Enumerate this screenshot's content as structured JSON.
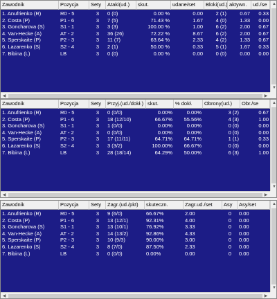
{
  "table1": {
    "headers": [
      "Zawodnik",
      "Pozycja",
      "Sety",
      "Ataki(ud.)",
      "skut.",
      "udane/set",
      "Bloki(ud.)",
      "aktywn.",
      "ud./se"
    ],
    "rows": [
      [
        "1. Anufrienko (R)",
        "R0 - 5",
        "3",
        "0 (0)",
        "0.00 %",
        "0.00",
        "2 (1)",
        "0.67",
        "0.33"
      ],
      [
        "2. Costa (P)",
        "P1 - 6",
        "3",
        "7 (5)",
        "71.43 %",
        "1.67",
        "4 (0)",
        "1.33",
        "0.00"
      ],
      [
        "3. Goncharova (S)",
        "S1 - 1",
        "3",
        "3 (3)",
        "100.00 %",
        "1.00",
        "6 (2)",
        "2.00",
        "0.67"
      ],
      [
        "4. Van-Hecke (A)",
        "AT - 2",
        "3",
        "36 (26)",
        "72.22 %",
        "8.67",
        "6 (2)",
        "2.00",
        "0.67"
      ],
      [
        "5. Sperskaite (P)",
        "P2 - 3",
        "3",
        "11 (7)",
        "63.64 %",
        "2.33",
        "4 (2)",
        "1.33",
        "0.67"
      ],
      [
        "6. Lazarenko (S)",
        "S2 - 4",
        "3",
        "2 (1)",
        "50.00 %",
        "0.33",
        "5 (1)",
        "1.67",
        "0.33"
      ],
      [
        "7. Bibina (L)",
        "LB",
        "3",
        "0 (0)",
        "0.00 %",
        "0.00",
        "0 (0)",
        "0.00",
        "0.00"
      ]
    ]
  },
  "table2": {
    "headers": [
      "Zawodnik",
      "Pozycja",
      "Sety",
      "Przyj.(ud./dokł.)",
      "skut.",
      "% dokł.",
      "Obrony(ud.)",
      "Obr./se"
    ],
    "rows": [
      [
        "1. Anufrienko (R)",
        "R0 - 5",
        "3",
        "0 (0/0)",
        "0.00%",
        "0.00%",
        "3 (2)",
        "0.67"
      ],
      [
        "2. Costa (P)",
        "P1 - 6",
        "3",
        "18 (12/10)",
        "66.67%",
        "55.56%",
        "4 (3)",
        "1.00"
      ],
      [
        "3. Goncharova (S)",
        "S1 - 1",
        "3",
        "1 (0/0)",
        "0.00%",
        "0.00%",
        "0 (0)",
        "0.00"
      ],
      [
        "4. Van-Hecke (A)",
        "AT - 2",
        "3",
        "0 (0/0)",
        "0.00%",
        "0.00%",
        "0 (0)",
        "0.00"
      ],
      [
        "5. Sperskaite (P)",
        "P2 - 3",
        "3",
        "17 (11/11)",
        "64.71%",
        "64.71%",
        "1 (1)",
        "0.33"
      ],
      [
        "6. Lazarenko (S)",
        "S2 - 4",
        "3",
        "3 (3/2)",
        "100.00%",
        "66.67%",
        "0 (0)",
        "0.00"
      ],
      [
        "7. Bibina (L)",
        "LB",
        "3",
        "28 (18/14)",
        "64.29%",
        "50.00%",
        "6 (3)",
        "1.00"
      ]
    ]
  },
  "table3": {
    "headers": [
      "Zawodnik",
      "Pozycja",
      "Sety",
      "Zagr.(ud./pkt)",
      "skuteczn.",
      "Zagr.ud./set",
      "Asy",
      "Asy/set"
    ],
    "rows": [
      [
        "1. Anufrienko (R)",
        "R0 - 5",
        "3",
        "9 (6/0)",
        "66.67%",
        "2.00",
        "0",
        "0.00"
      ],
      [
        "2. Costa (P)",
        "P1 - 6",
        "3",
        "13 (12/1)",
        "92.31%",
        "4.00",
        "0",
        "0.00"
      ],
      [
        "3. Goncharova (S)",
        "S1 - 1",
        "3",
        "13 (10/1)",
        "76.92%",
        "3.33",
        "0",
        "0.00"
      ],
      [
        "4. Van-Hecke (A)",
        "AT - 2",
        "3",
        "14 (13/2)",
        "92.86%",
        "4.33",
        "0",
        "0.00"
      ],
      [
        "5. Sperskaite (P)",
        "P2 - 3",
        "3",
        "10 (9/3)",
        "90.00%",
        "3.00",
        "0",
        "0.00"
      ],
      [
        "6. Lazarenko (S)",
        "S2 - 4",
        "3",
        "8 (7/0)",
        "87.50%",
        "2.33",
        "0",
        "0.00"
      ],
      [
        "7. Bibina (L)",
        "LB",
        "3",
        "0 (0/0)",
        "0.00%",
        "0.00",
        "0",
        "0.00"
      ]
    ]
  },
  "colors": {
    "table_bg": "#1c1c86",
    "header_bg": "#f0f0f0",
    "text": "#ffffff"
  },
  "icons": {
    "scroll_up": "▲",
    "scroll_down": "▼",
    "scroll_left": "◀",
    "scroll_right": "▶"
  }
}
